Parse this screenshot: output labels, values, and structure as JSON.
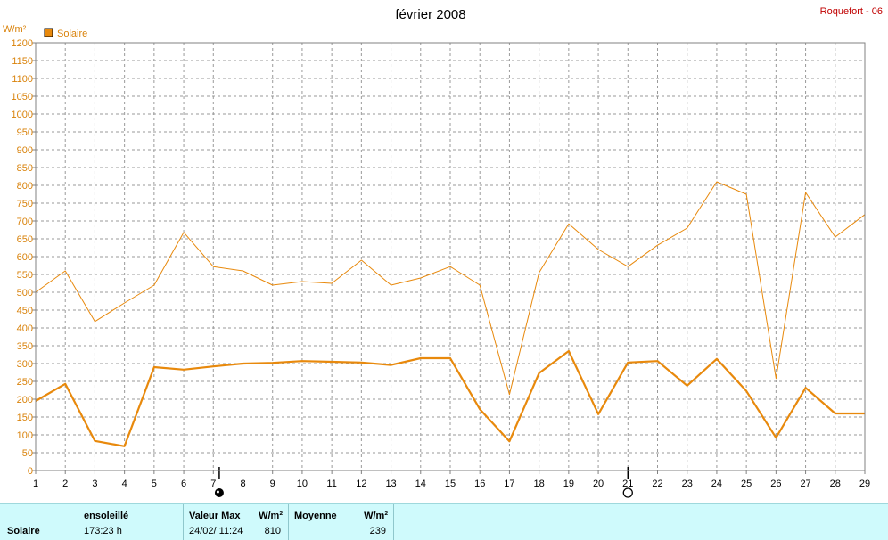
{
  "header": {
    "title": "février 2008",
    "station": "Roquefort - 06"
  },
  "chart_data": {
    "type": "line",
    "title": "février 2008",
    "ylabel": "W/m²",
    "xlabel": "",
    "ylim": [
      0,
      1200
    ],
    "ytick_step": 50,
    "x": [
      1,
      2,
      3,
      4,
      5,
      6,
      7,
      8,
      9,
      10,
      11,
      12,
      13,
      14,
      15,
      16,
      17,
      18,
      19,
      20,
      21,
      22,
      23,
      24,
      25,
      26,
      27,
      28,
      29
    ],
    "grid": true,
    "legend": "top-left",
    "series": [
      {
        "name": "Solaire",
        "role": "max",
        "color": "#e8890c",
        "values": [
          500,
          560,
          418,
          470,
          520,
          668,
          572,
          560,
          520,
          530,
          525,
          590,
          520,
          540,
          572,
          520,
          213,
          555,
          692,
          620,
          572,
          632,
          680,
          810,
          775,
          258,
          780,
          655,
          718
        ]
      },
      {
        "name": "Solaire",
        "role": "mean",
        "color": "#e8890c",
        "values": [
          195,
          243,
          83,
          68,
          290,
          283,
          292,
          300,
          302,
          307,
          305,
          303,
          296,
          315,
          315,
          172,
          82,
          273,
          335,
          158,
          303,
          307,
          238,
          313,
          223,
          92,
          232,
          160,
          160
        ]
      }
    ],
    "moon_markers": [
      {
        "x": 7.2,
        "phase": "new-moon-icon"
      },
      {
        "x": 21.0,
        "phase": "full-moon-icon"
      }
    ]
  },
  "stats": {
    "row_label": "Solaire",
    "sunshine_header": "ensoleillé",
    "sunshine_value": "173:23 h",
    "max_header": "Valeur Max",
    "max_unit": "W/m²",
    "max_date": "24/02/  11:24",
    "max_value": "810",
    "avg_header": "Moyenne",
    "avg_unit": "W/m²",
    "avg_value": "239"
  }
}
